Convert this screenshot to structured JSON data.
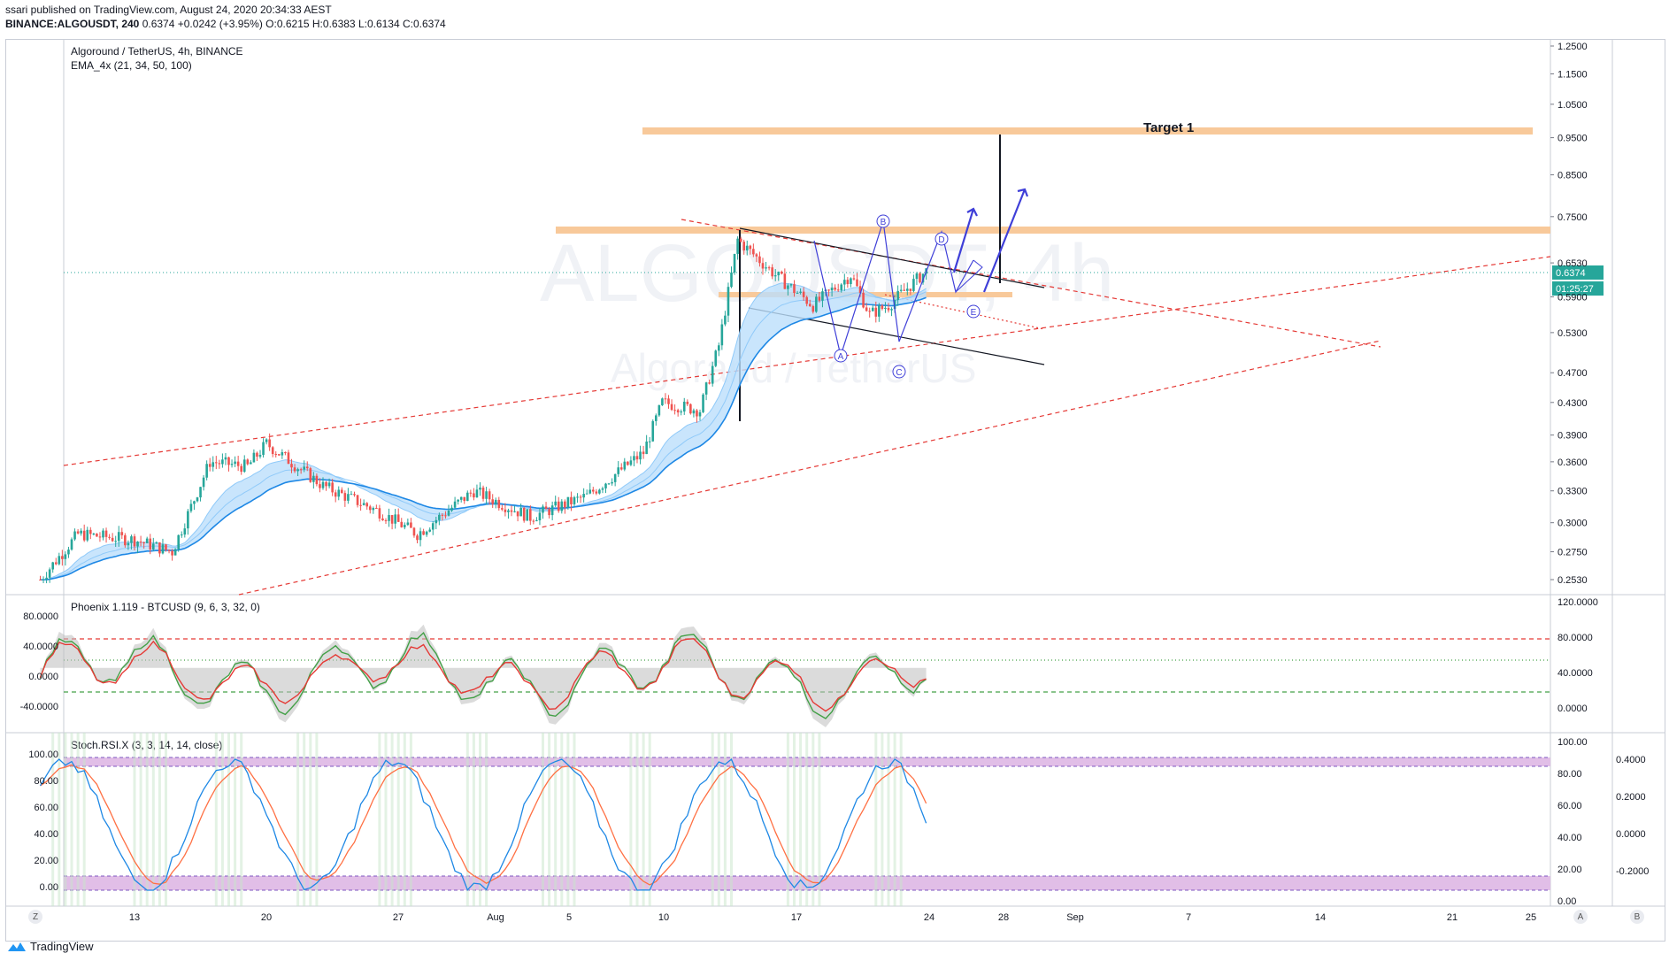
{
  "header": {
    "published": "ssari published on TradingView.com, August 24, 2020 20:34:33 AEST",
    "symbol": "BINANCE:ALGOUSDT, 240",
    "last": "0.6374",
    "change": "+0.0242 (+3.95%)",
    "o_label": "O:",
    "o": "0.6215",
    "h_label": "H:",
    "h": "0.6383",
    "l_label": "L:",
    "l": "0.6134",
    "c_label": "C:",
    "c": "0.6374"
  },
  "colors": {
    "up": "#26a69a",
    "down": "#ef5350",
    "ema": "#2196f3",
    "ema_fill": "#bbdefb",
    "zone": "#f8c99a",
    "trend_red": "#e53935",
    "wave_blue": "#3f3fd8",
    "badge": "#26a69a",
    "stoch_band": "#e1bee7",
    "green_line": "#43a047"
  },
  "main": {
    "title": "Algoround / TetherUS, 4h, BINANCE",
    "indicator": "EMA_4x (21, 34, 50, 100)",
    "watermark_symbol": "ALGOUSDT, 4h",
    "watermark_name": "Algorand / TetherUS",
    "target_label": "Target 1",
    "wave_labels": [
      "A",
      "B",
      "C",
      "D",
      "E"
    ],
    "price_badge": "0.6374",
    "countdown_badge": "01:25:27"
  },
  "osc": {
    "title": "Phoenix 1.119 - BTCUSD (9, 6, 3, 32, 0)",
    "left_ticks": [
      "80.0000",
      "40.0000",
      "0.0000",
      "-40.0000"
    ],
    "right_ticks": [
      "120.0000",
      "80.0000",
      "40.0000",
      "0.0000"
    ]
  },
  "stoch": {
    "title": "Stoch.RSI.X (3, 3, 14, 14, close)",
    "left_ticks": [
      "100.00",
      "80.00",
      "60.00",
      "40.00",
      "20.00",
      "0.00"
    ],
    "right_ticks": [
      "100.00",
      "80.00",
      "60.00",
      "40.00",
      "20.00",
      "0.00"
    ],
    "far_right_ticks": [
      "0.4000",
      "0.2000",
      "0.0000",
      "-0.2000"
    ]
  },
  "footer": {
    "z": "Z",
    "a": "A",
    "b": "B",
    "brand": "TradingView"
  },
  "chart_data": {
    "type": "candlestick",
    "symbol": "BINANCE:ALGOUSDT",
    "interval": "4h",
    "y_scale": "log",
    "price_ticks": [
      1.25,
      1.15,
      1.05,
      0.95,
      0.85,
      0.75,
      0.653,
      0.59,
      0.53,
      0.47,
      0.43,
      0.39,
      0.36,
      0.33,
      0.3,
      0.275,
      0.253
    ],
    "price_tick_labels": [
      "1.2500",
      "1.1500",
      "1.0500",
      "0.9500",
      "0.8500",
      "0.7500",
      "0.6530",
      "0.5900",
      "0.5300",
      "0.4700",
      "0.4300",
      "0.3900",
      "0.3600",
      "0.3300",
      "0.3000",
      "0.2750",
      "0.2530"
    ],
    "x_tick_labels": [
      "13",
      "20",
      "27",
      "Aug",
      "5",
      "10",
      "17",
      "24",
      "28",
      "Sep",
      "7",
      "14",
      "21",
      "25"
    ],
    "ohlc_last": {
      "open": 0.6215,
      "high": 0.6383,
      "low": 0.6134,
      "close": 0.6374
    },
    "approx_close_path": [
      [
        "2020-07-08",
        0.253
      ],
      [
        "2020-07-10",
        0.29
      ],
      [
        "2020-07-13",
        0.285
      ],
      [
        "2020-07-15",
        0.275
      ],
      [
        "2020-07-17",
        0.36
      ],
      [
        "2020-07-19",
        0.355
      ],
      [
        "2020-07-20",
        0.38
      ],
      [
        "2020-07-23",
        0.335
      ],
      [
        "2020-07-26",
        0.31
      ],
      [
        "2020-07-28",
        0.29
      ],
      [
        "2020-07-31",
        0.33
      ],
      [
        "2020-08-03",
        0.305
      ],
      [
        "2020-08-06",
        0.325
      ],
      [
        "2020-08-09",
        0.37
      ],
      [
        "2020-08-10",
        0.43
      ],
      [
        "2020-08-12",
        0.42
      ],
      [
        "2020-08-13",
        0.51
      ],
      [
        "2020-08-14",
        0.7
      ],
      [
        "2020-08-16",
        0.63
      ],
      [
        "2020-08-18",
        0.575
      ],
      [
        "2020-08-20",
        0.63
      ],
      [
        "2020-08-21",
        0.56
      ],
      [
        "2020-08-22",
        0.575
      ],
      [
        "2020-08-24",
        0.6374
      ]
    ],
    "resistance_zones": [
      0.96,
      0.72,
      0.59
    ],
    "target": {
      "label": "Target 1",
      "price": 0.96
    }
  }
}
